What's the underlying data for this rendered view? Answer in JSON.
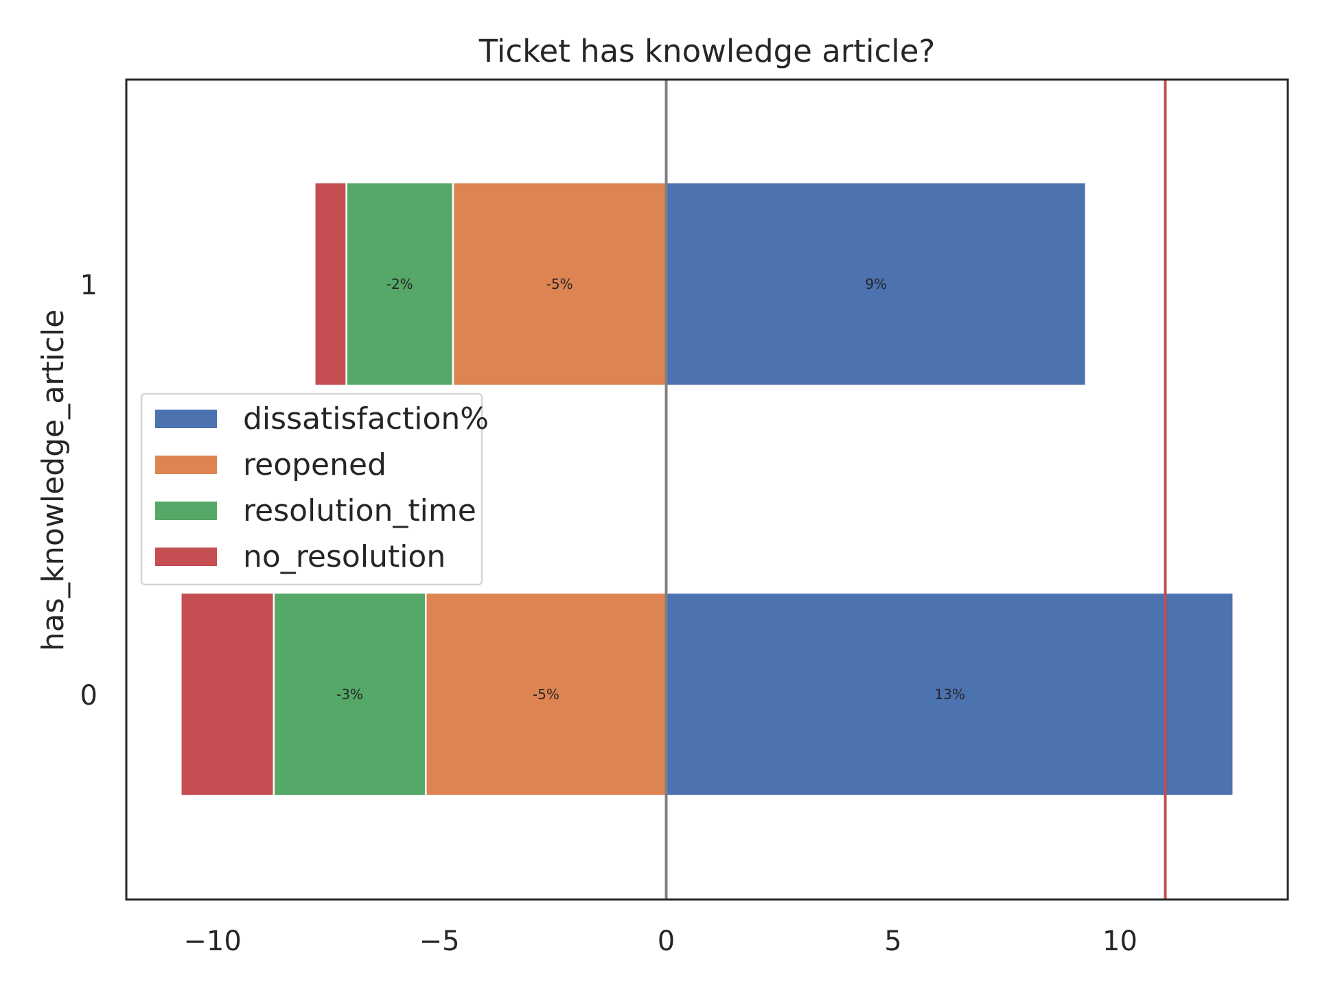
{
  "chart_data": {
    "type": "bar",
    "orientation": "horizontal",
    "stacked": true,
    "title": "Ticket has knowledge article?",
    "xlabel": "",
    "ylabel": "has_knowledge_article",
    "categories": [
      "1",
      "0"
    ],
    "xlim": [
      -11.9,
      13.7
    ],
    "xticks": [
      -10,
      -5,
      0,
      5,
      10
    ],
    "xtick_labels": [
      "−10",
      "−5",
      "0",
      "5",
      "10"
    ],
    "grid": false,
    "legend_position": "center-left",
    "series": [
      {
        "name": "dissatisfaction%",
        "color": "#4c72b0",
        "values": [
          [
            0,
            9.25
          ],
          [
            0,
            12.5
          ]
        ],
        "labels": [
          "9%",
          "13%"
        ]
      },
      {
        "name": "reopened",
        "color": "#dd8452",
        "values": [
          [
            -4.7,
            0
          ],
          [
            -5.3,
            0
          ]
        ],
        "labels": [
          "-5%",
          "-5%"
        ]
      },
      {
        "name": "resolution_time",
        "color": "#55a868",
        "values": [
          [
            -7.05,
            -4.7
          ],
          [
            -8.65,
            -5.3
          ]
        ],
        "labels": [
          "-2%",
          "-3%"
        ]
      },
      {
        "name": "no_resolution",
        "color": "#c44e52",
        "values": [
          [
            -7.75,
            -7.05
          ],
          [
            -10.7,
            -8.65
          ]
        ],
        "labels": [
          "",
          ""
        ]
      }
    ],
    "reference_lines": [
      {
        "x": 0,
        "color": "#808080"
      },
      {
        "x": 11,
        "color": "#c44e52"
      }
    ]
  }
}
